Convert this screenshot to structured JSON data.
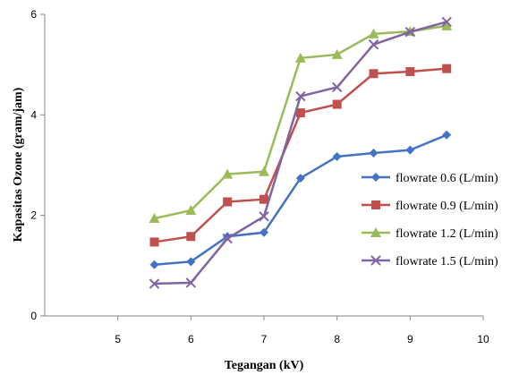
{
  "chart_data": {
    "type": "line",
    "title": "",
    "xlabel": "Tegangan (kV)",
    "ylabel": "Kapasitas Ozone (gram/jam)",
    "xlim": [
      4,
      10
    ],
    "ylim": [
      0,
      6
    ],
    "xticks": [
      "5",
      "6",
      "7",
      "8",
      "9",
      "10"
    ],
    "yticks": [
      "0",
      "2",
      "4",
      "6"
    ],
    "grid": false,
    "legend_position": "right",
    "x": [
      5.5,
      6,
      6.5,
      7,
      7.5,
      8,
      8.5,
      9,
      9.5
    ],
    "series": [
      {
        "name": "flowrate 0.6 (L/min)",
        "color": "#4472C4",
        "marker": "diamond",
        "values": [
          1.02,
          1.08,
          1.58,
          1.66,
          2.74,
          3.17,
          3.24,
          3.3,
          3.6
        ]
      },
      {
        "name": "flowrate 0.9 (L/min)",
        "color": "#C0504D",
        "marker": "square",
        "values": [
          1.47,
          1.58,
          2.27,
          2.32,
          4.04,
          4.21,
          4.82,
          4.86,
          4.92
        ]
      },
      {
        "name": "flowrate 1.2 (L/min)",
        "color": "#9BBB59",
        "marker": "triangle",
        "values": [
          1.94,
          2.1,
          2.82,
          2.87,
          5.13,
          5.2,
          5.61,
          5.66,
          5.77
        ]
      },
      {
        "name": "flowrate 1.5 (L/min)",
        "color": "#8064A2",
        "marker": "x",
        "values": [
          0.64,
          0.66,
          1.54,
          1.98,
          4.37,
          4.55,
          5.4,
          5.65,
          5.85
        ]
      }
    ]
  }
}
